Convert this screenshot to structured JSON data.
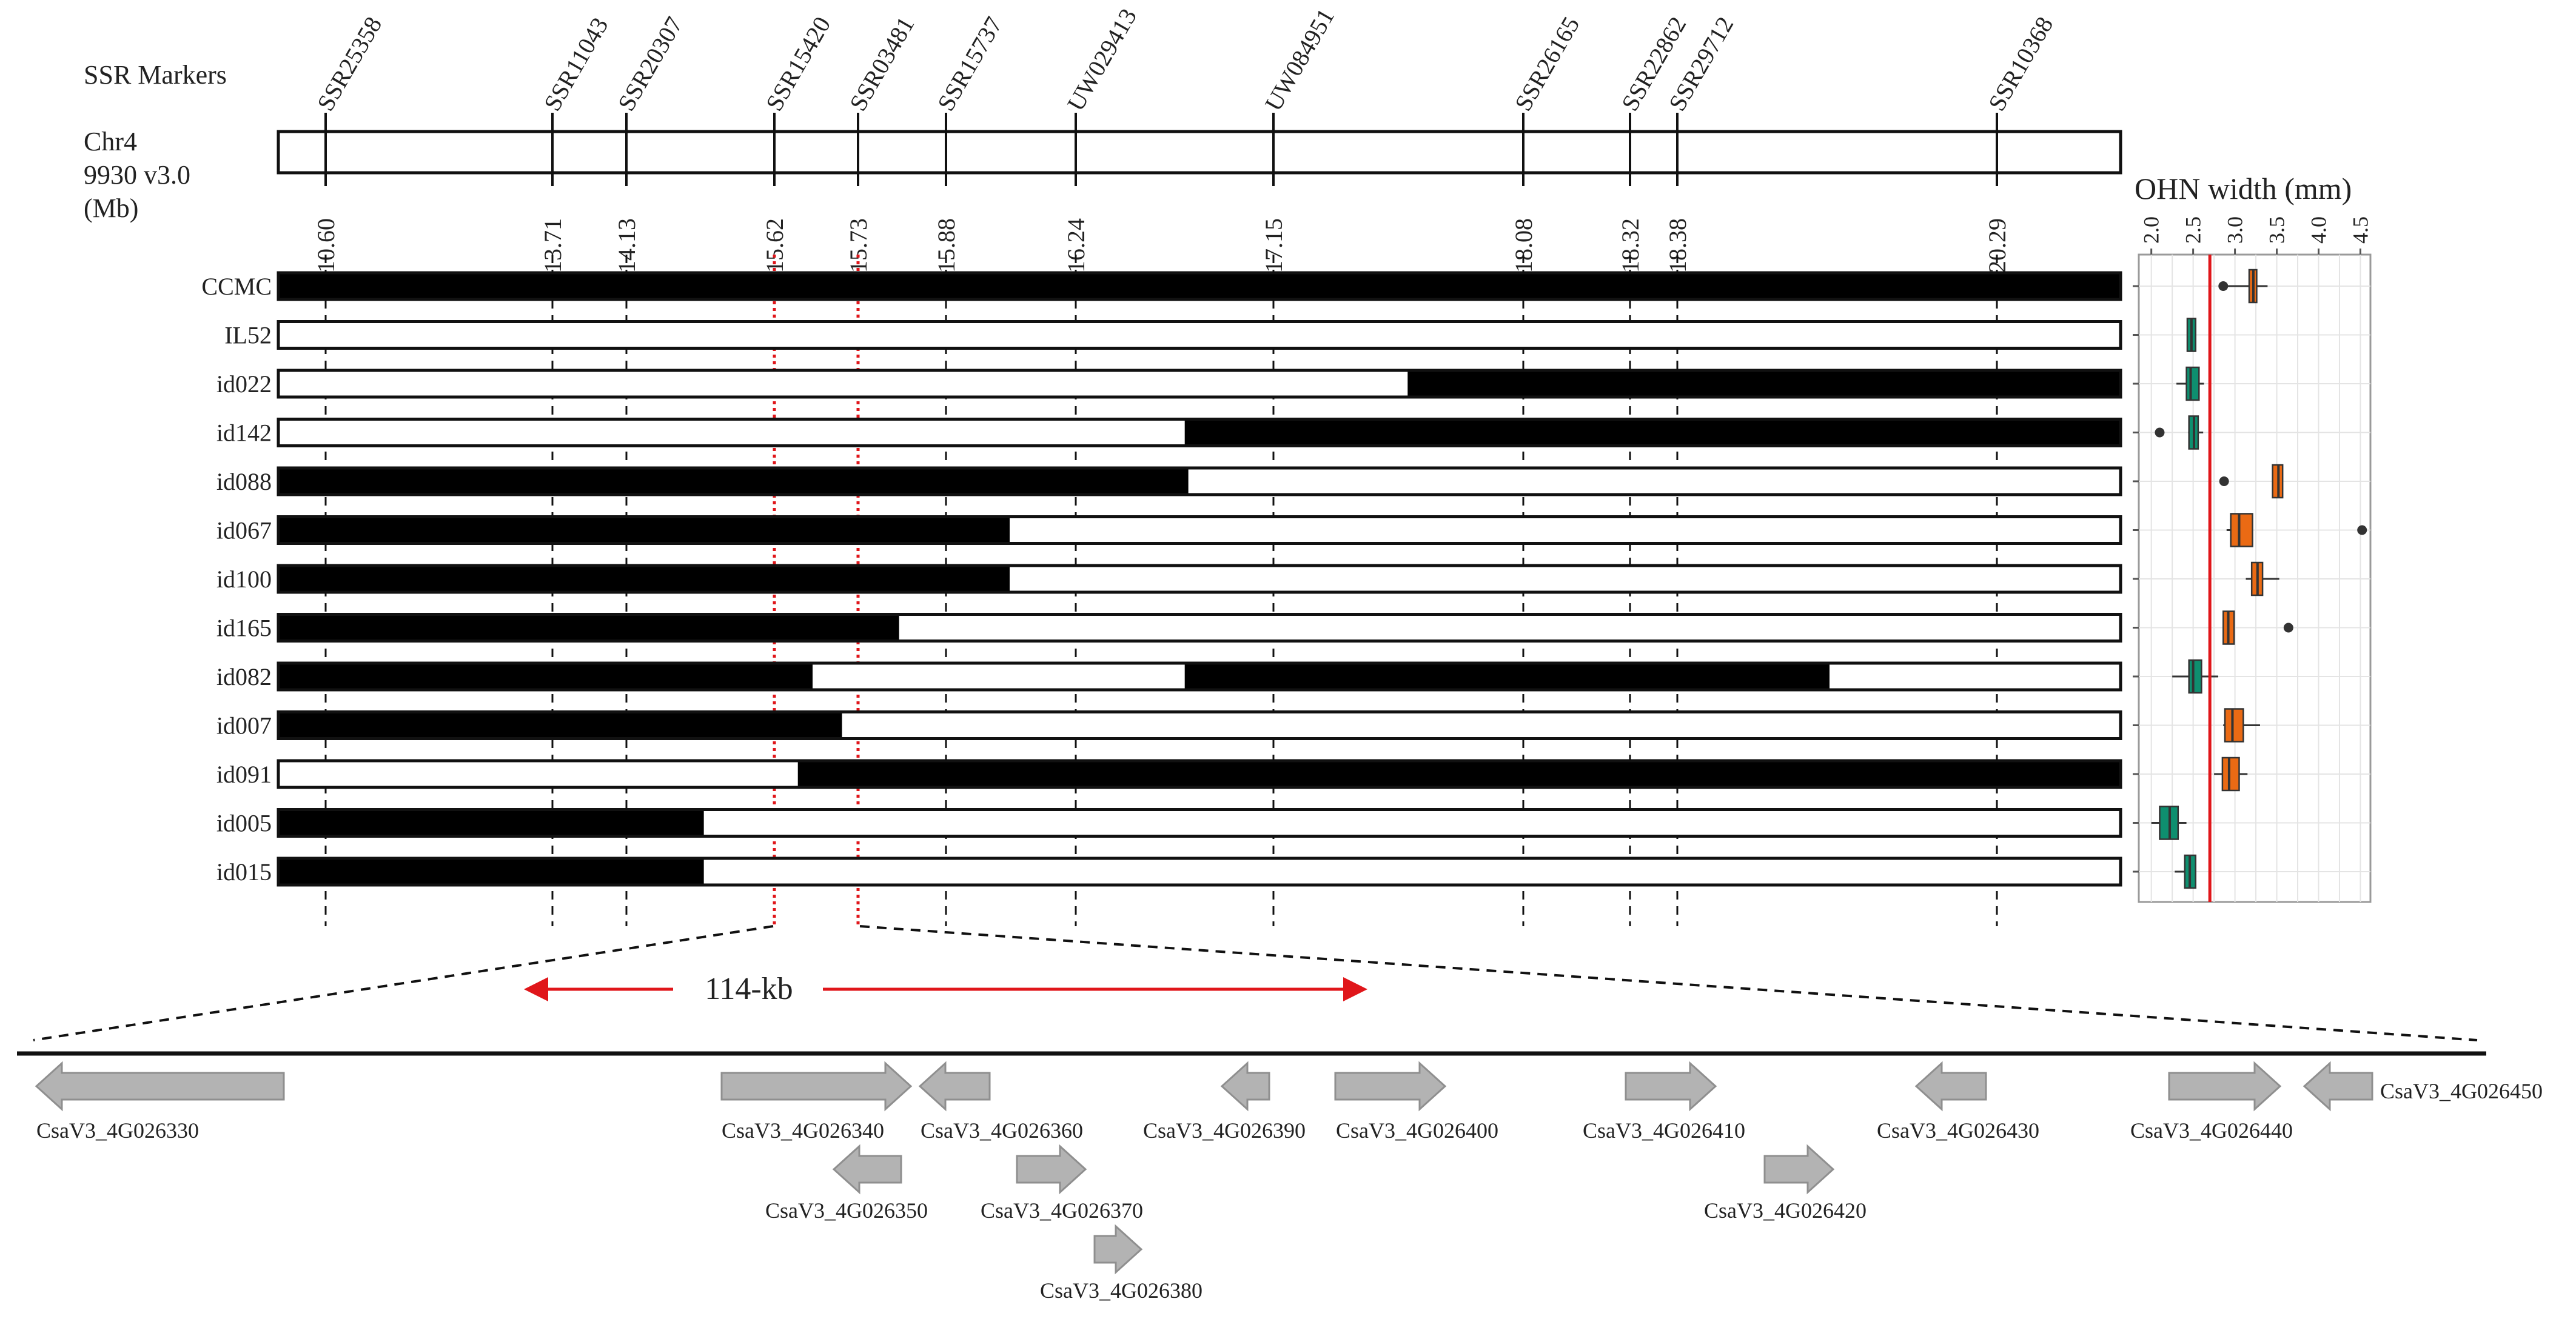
{
  "header": {
    "markers_title": "SSR Markers",
    "chr_line1": "Chr4",
    "chr_line2": "9930 v3.0",
    "chr_line3": "(Mb)"
  },
  "markers": [
    {
      "name": "SSR25358",
      "pos": "10.60"
    },
    {
      "name": "SSR11043",
      "pos": "13.71"
    },
    {
      "name": "SSR20307",
      "pos": "14.13"
    },
    {
      "name": "SSR15420",
      "pos": "15.62"
    },
    {
      "name": "SSR03481",
      "pos": "15.73"
    },
    {
      "name": "SSR15737",
      "pos": "15.88"
    },
    {
      "name": "UW029413",
      "pos": "16.24"
    },
    {
      "name": "UW084951",
      "pos": "17.15"
    },
    {
      "name": "SSR26165",
      "pos": "18.08"
    },
    {
      "name": "SSR22862",
      "pos": "18.32"
    },
    {
      "name": "SSR29712",
      "pos": "18.38"
    },
    {
      "name": "SSR10368",
      "pos": "20.29"
    }
  ],
  "lines": [
    {
      "name": "CCMC",
      "segments": [
        [
          0,
          1,
          "black"
        ]
      ],
      "box": {
        "min": 2.86,
        "q1": 3.17,
        "med": 3.22,
        "q3": 3.26,
        "max": 3.39,
        "group": "wide",
        "outliers": [
          2.86
        ]
      }
    },
    {
      "name": "IL52",
      "segments": [
        [
          0,
          1,
          "white"
        ]
      ],
      "box": {
        "min": 2.43,
        "q1": 2.43,
        "med": 2.48,
        "q3": 2.53,
        "max": 2.53,
        "group": "narrow",
        "outliers": []
      }
    },
    {
      "name": "id022",
      "segments": [
        [
          0,
          0.613,
          "white"
        ],
        [
          0.613,
          1,
          "black"
        ]
      ],
      "box": {
        "min": 2.3,
        "q1": 2.42,
        "med": 2.47,
        "q3": 2.57,
        "max": 2.63,
        "group": "narrow",
        "outliers": []
      }
    },
    {
      "name": "id142",
      "segments": [
        [
          0,
          0.492,
          "white"
        ],
        [
          0.492,
          1,
          "black"
        ]
      ],
      "box": {
        "min": 2.44,
        "q1": 2.45,
        "med": 2.51,
        "q3": 2.56,
        "max": 2.62,
        "group": "narrow",
        "outliers": [
          2.1
        ]
      }
    },
    {
      "name": "id088",
      "segments": [
        [
          0,
          0.494,
          "black"
        ],
        [
          0.494,
          1,
          "white"
        ]
      ],
      "box": {
        "min": 3.45,
        "q1": 3.45,
        "med": 3.52,
        "q3": 3.57,
        "max": 3.57,
        "group": "wide",
        "outliers": [
          2.87
        ]
      }
    },
    {
      "name": "id067",
      "segments": [
        [
          0,
          0.397,
          "black"
        ],
        [
          0.397,
          1,
          "white"
        ]
      ],
      "box": {
        "min": 2.9,
        "q1": 2.95,
        "med": 3.05,
        "q3": 3.21,
        "max": 3.21,
        "group": "wide",
        "outliers": [
          4.52
        ]
      }
    },
    {
      "name": "id100",
      "segments": [
        [
          0,
          0.397,
          "black"
        ],
        [
          0.397,
          1,
          "white"
        ]
      ],
      "box": {
        "min": 3.13,
        "q1": 3.2,
        "med": 3.27,
        "q3": 3.33,
        "max": 3.53,
        "group": "wide",
        "outliers": []
      }
    },
    {
      "name": "id165",
      "segments": [
        [
          0,
          0.337,
          "black"
        ],
        [
          0.337,
          1,
          "white"
        ]
      ],
      "box": {
        "min": 2.86,
        "q1": 2.86,
        "med": 2.92,
        "q3": 2.99,
        "max": 2.99,
        "group": "wide",
        "outliers": [
          3.64
        ]
      }
    },
    {
      "name": "id082",
      "segments": [
        [
          0,
          0.29,
          "black"
        ],
        [
          0.29,
          0.492,
          "white"
        ],
        [
          0.492,
          0.842,
          "black"
        ],
        [
          0.842,
          1,
          "white"
        ]
      ],
      "box": {
        "min": 2.25,
        "q1": 2.45,
        "med": 2.5,
        "q3": 2.6,
        "max": 2.8,
        "group": "narrow",
        "outliers": []
      }
    },
    {
      "name": "id007",
      "segments": [
        [
          0,
          0.306,
          "black"
        ],
        [
          0.306,
          1,
          "white"
        ]
      ],
      "box": {
        "min": 2.86,
        "q1": 2.88,
        "med": 2.97,
        "q3": 3.1,
        "max": 3.3,
        "group": "wide",
        "outliers": []
      }
    },
    {
      "name": "id091",
      "segments": [
        [
          0,
          0.282,
          "white"
        ],
        [
          0.282,
          1,
          "black"
        ]
      ],
      "box": {
        "min": 2.75,
        "q1": 2.85,
        "med": 2.93,
        "q3": 3.05,
        "max": 3.15,
        "group": "wide",
        "outliers": []
      }
    },
    {
      "name": "id005",
      "segments": [
        [
          0,
          0.231,
          "black"
        ],
        [
          0.231,
          1,
          "white"
        ]
      ],
      "box": {
        "min": 2.0,
        "q1": 2.1,
        "med": 2.22,
        "q3": 2.32,
        "max": 2.42,
        "group": "narrow",
        "outliers": []
      }
    },
    {
      "name": "id015",
      "segments": [
        [
          0,
          0.231,
          "black"
        ],
        [
          0.231,
          1,
          "white"
        ]
      ],
      "box": {
        "min": 2.28,
        "q1": 2.4,
        "med": 2.46,
        "q3": 2.53,
        "max": 2.53,
        "group": "narrow",
        "outliers": []
      }
    }
  ],
  "boxplot": {
    "title": "OHN width (mm)",
    "ticks": [
      "2.0",
      "2.5",
      "3.0",
      "3.5",
      "4.0",
      "4.5"
    ],
    "threshold": 2.7,
    "colors": {
      "wide": "#ea6a14",
      "narrow": "#0e8f6f",
      "threshold": "#e0161a"
    }
  },
  "zoom": {
    "interval_label": "114-kb"
  },
  "genes": [
    {
      "name": "CsaV3_4G026330",
      "dir": "left",
      "row": 0
    },
    {
      "name": "CsaV3_4G026340",
      "dir": "right",
      "row": 0
    },
    {
      "name": "CsaV3_4G026350",
      "dir": "left",
      "row": 1
    },
    {
      "name": "CsaV3_4G026360",
      "dir": "left",
      "row": 0
    },
    {
      "name": "CsaV3_4G026370",
      "dir": "right",
      "row": 1
    },
    {
      "name": "CsaV3_4G026380",
      "dir": "right",
      "row": 2
    },
    {
      "name": "CsaV3_4G026390",
      "dir": "left",
      "row": 0
    },
    {
      "name": "CsaV3_4G026400",
      "dir": "right",
      "row": 0
    },
    {
      "name": "CsaV3_4G026410",
      "dir": "right",
      "row": 0
    },
    {
      "name": "CsaV3_4G026420",
      "dir": "right",
      "row": 1
    },
    {
      "name": "CsaV3_4G026430",
      "dir": "left",
      "row": 0
    },
    {
      "name": "CsaV3_4G026440",
      "dir": "right",
      "row": 0
    },
    {
      "name": "CsaV3_4G026450",
      "dir": "left",
      "row": 0
    }
  ]
}
